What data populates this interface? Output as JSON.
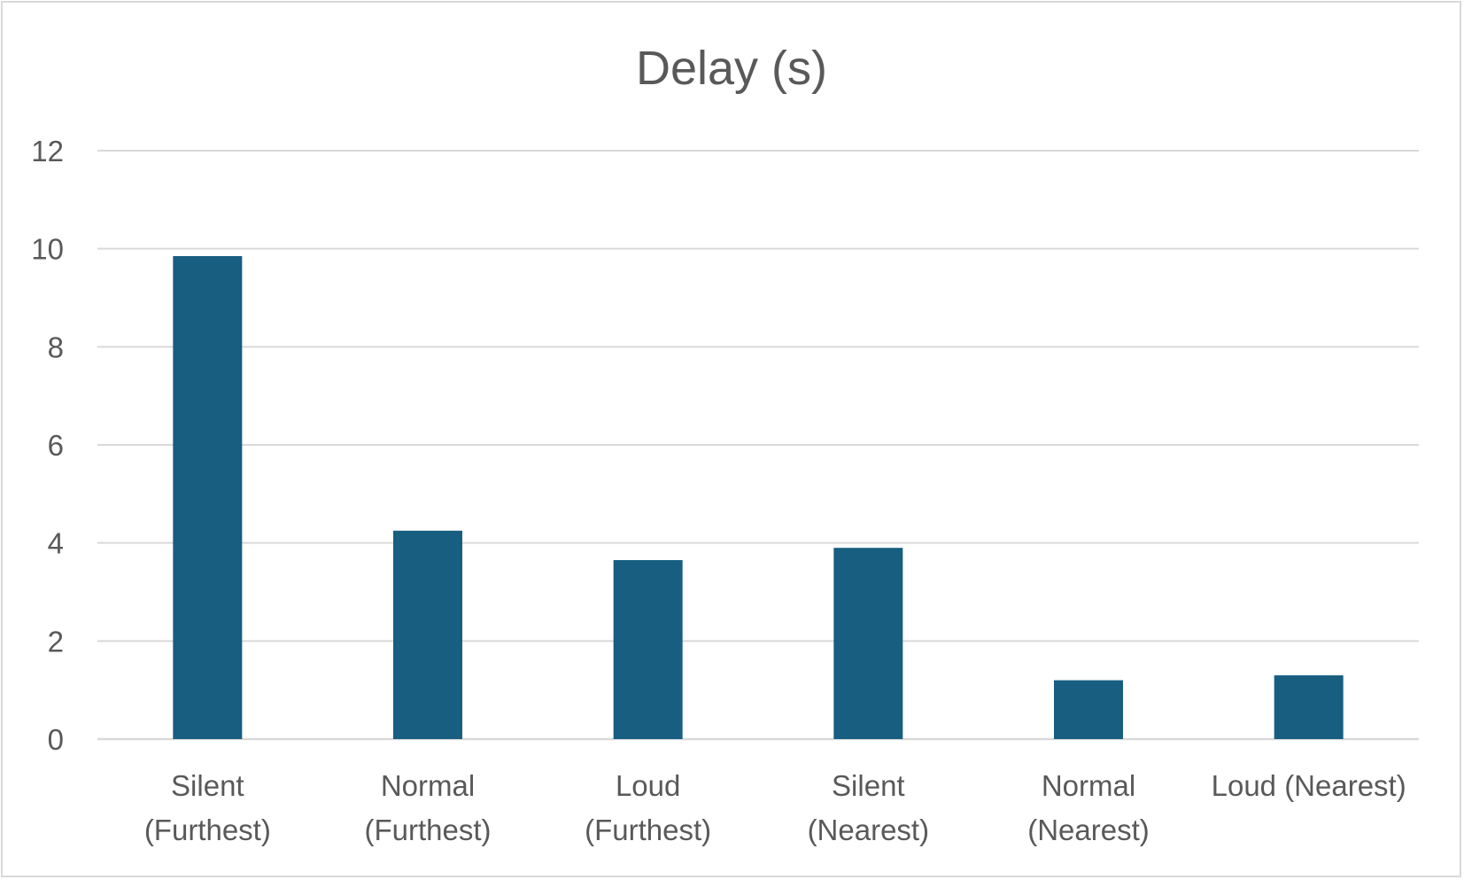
{
  "chart_data": {
    "type": "bar",
    "title": "Delay (s)",
    "xlabel": "",
    "ylabel": "",
    "categories": [
      [
        "Silent",
        "(Furthest)"
      ],
      [
        "Normal",
        "(Furthest)"
      ],
      [
        "Loud",
        "(Furthest)"
      ],
      [
        "Silent",
        "(Nearest)"
      ],
      [
        "Normal",
        "(Nearest)"
      ],
      [
        "Loud (Nearest)"
      ]
    ],
    "values": [
      9.85,
      4.25,
      3.65,
      3.9,
      1.2,
      1.3
    ],
    "ylim": [
      0,
      12
    ],
    "yticks": [
      "0",
      "2",
      "4",
      "6",
      "8",
      "10",
      "12"
    ],
    "grid": true,
    "legend": "none",
    "bar_color": "#175e80",
    "grid_color": "#d9d9d9",
    "text_color": "#595959"
  }
}
